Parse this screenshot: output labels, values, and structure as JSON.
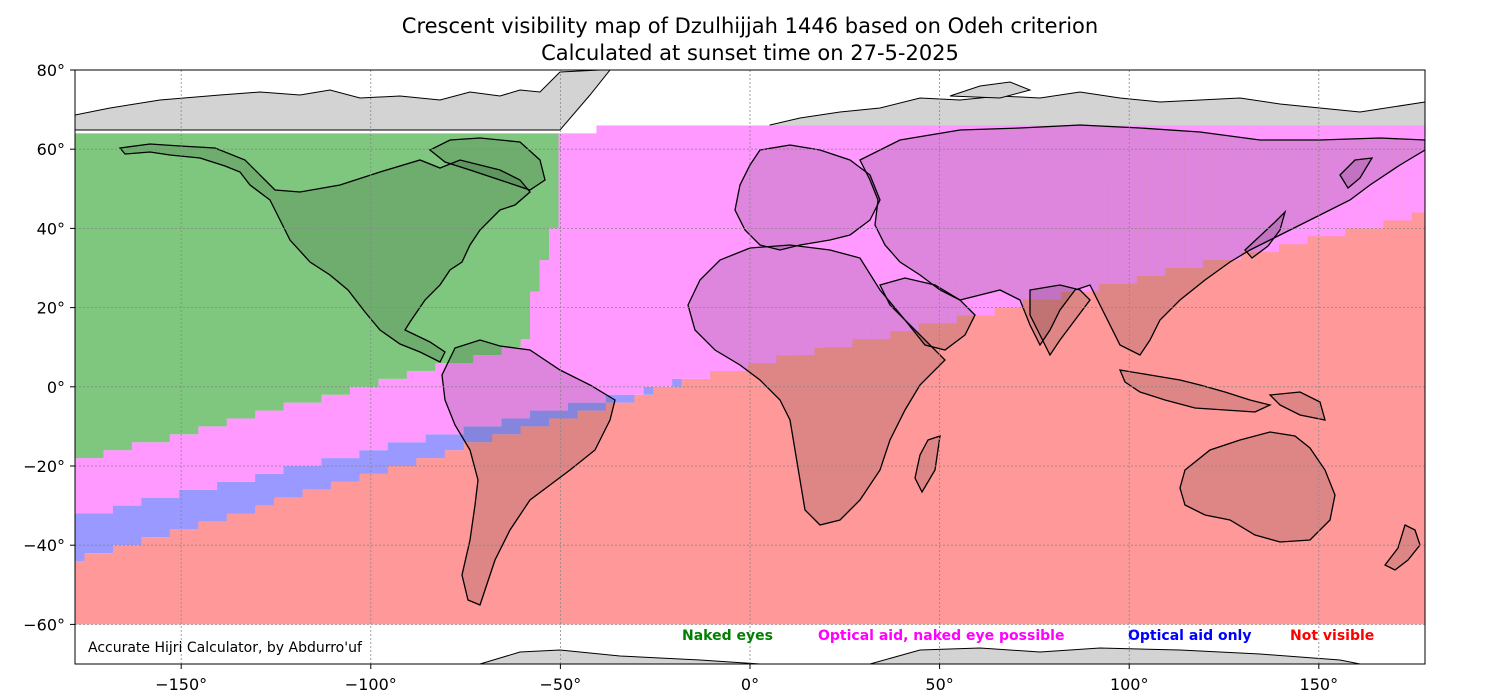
{
  "title": "Crescent visibility map of Dzulhijjah 1446 based on Odeh criterion",
  "subtitle": "Calculated at sunset time on 27-5-2025",
  "credit": "Accurate Hijri Calculator, by Abdurro'uf",
  "axes": {
    "x_ticks": [
      {
        "value": -150,
        "label": "−150°"
      },
      {
        "value": -100,
        "label": "−100°"
      },
      {
        "value": -50,
        "label": "−50°"
      },
      {
        "value": 0,
        "label": "0°"
      },
      {
        "value": 50,
        "label": "50°"
      },
      {
        "value": 100,
        "label": "100°"
      },
      {
        "value": 150,
        "label": "150°"
      }
    ],
    "y_ticks": [
      {
        "value": 80,
        "label": "80°"
      },
      {
        "value": 60,
        "label": "60°"
      },
      {
        "value": 40,
        "label": "40°"
      },
      {
        "value": 20,
        "label": "20°"
      },
      {
        "value": 0,
        "label": "0°"
      },
      {
        "value": -20,
        "label": "−20°"
      },
      {
        "value": -40,
        "label": "−40°"
      },
      {
        "value": -60,
        "label": "−60°"
      }
    ],
    "xlim": [
      -178,
      178
    ],
    "ylim": [
      -70,
      80
    ],
    "grid": true
  },
  "legend": [
    {
      "label": "Naked eyes",
      "color": "#008000"
    },
    {
      "label": "Optical aid, naked eye possible",
      "color": "#ff00ff"
    },
    {
      "label": "Optical aid only",
      "color": "#0000ff"
    },
    {
      "label": "Not visible",
      "color": "#ff0000"
    }
  ],
  "zones": {
    "computed_lat_range": [
      -60,
      66
    ],
    "naked_eyes_color": "#7fc77f",
    "optical_possible_color": "#ff99ff",
    "optical_only_color": "#9999ff",
    "not_visible_color": "#ff9999",
    "land_color": "#d3d3d3"
  }
}
